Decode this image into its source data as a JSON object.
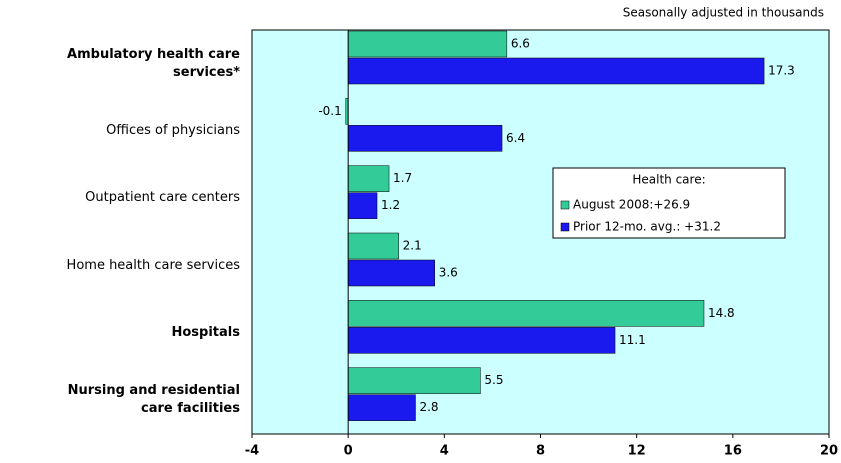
{
  "chart_data": {
    "type": "bar",
    "orientation": "horizontal",
    "subtitle": "Seasonally adjusted in thousands",
    "categories": [
      "Ambulatory health care services*",
      "Offices of physicians",
      "Outpatient care centers",
      "Home health care services",
      "Hospitals",
      "Nursing and residential care facilities"
    ],
    "category_bold": [
      true,
      false,
      false,
      false,
      true,
      true
    ],
    "series": [
      {
        "name": "August 2008:+26.9",
        "color": "#33cc99",
        "values": [
          6.6,
          -0.1,
          1.7,
          2.1,
          14.8,
          5.5
        ]
      },
      {
        "name": "Prior 12-mo. avg.: +31.2",
        "color": "#1a1aee",
        "values": [
          17.3,
          6.4,
          1.2,
          3.6,
          11.1,
          2.8
        ]
      }
    ],
    "legend_title": "Health care:",
    "xlim": [
      -4,
      20
    ],
    "xticks": [
      -4,
      0,
      4,
      8,
      12,
      16,
      20
    ],
    "plot_background": "#ccffff"
  }
}
